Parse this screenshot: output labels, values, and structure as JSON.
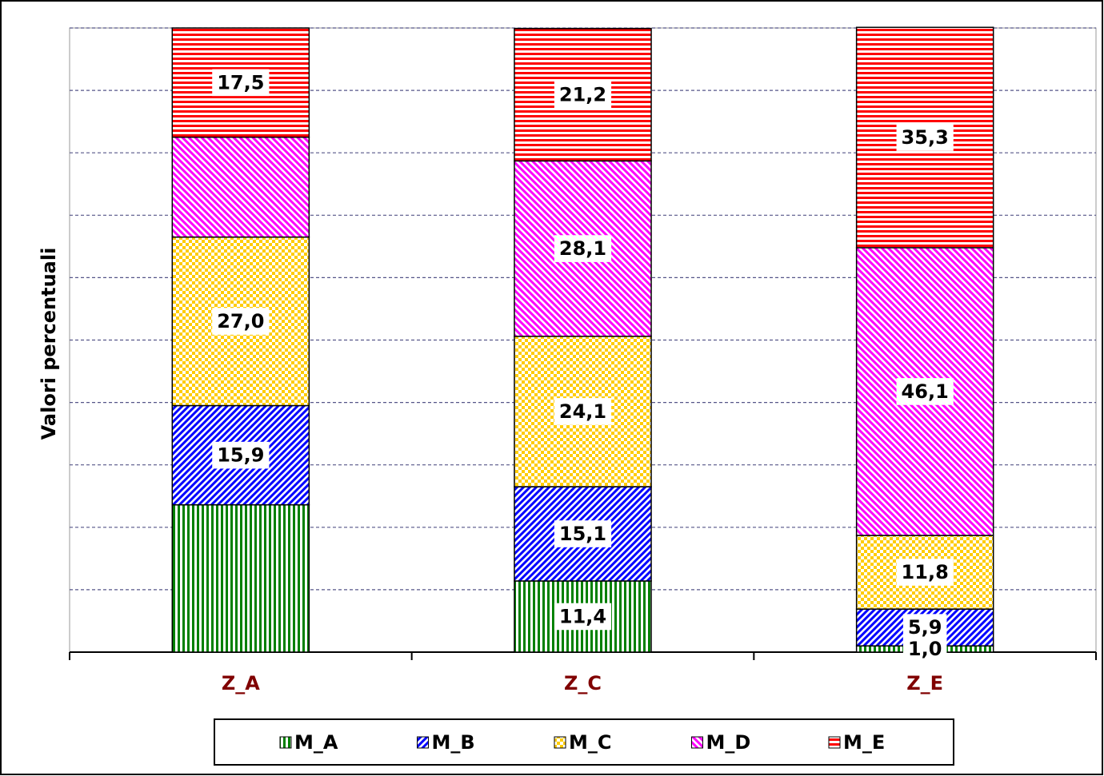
{
  "chart_data": {
    "type": "stacked_bar",
    "y_label": "Valori percentuali",
    "categories": [
      "Z_A",
      "Z_C",
      "Z_E"
    ],
    "series": [
      {
        "name": "M_A",
        "color": "#008000",
        "values": [
          23.6,
          11.4,
          1.0
        ],
        "value_labels": [
          null,
          "11,4",
          "1,0"
        ]
      },
      {
        "name": "M_B",
        "color": "#0000ff",
        "values": [
          15.9,
          15.1,
          5.9
        ],
        "value_labels": [
          "15,9",
          "15,1",
          "5,9"
        ]
      },
      {
        "name": "M_C",
        "color": "#ffcc00",
        "values": [
          27.0,
          24.1,
          11.8
        ],
        "value_labels": [
          "27,0",
          "24,1",
          "11,8"
        ]
      },
      {
        "name": "M_D",
        "color": "#ff00ff",
        "values": [
          16.0,
          28.1,
          46.1
        ],
        "value_labels": [
          null,
          "28,1",
          "46,1"
        ]
      },
      {
        "name": "M_E",
        "color": "#ff0000",
        "values": [
          17.5,
          21.2,
          35.3
        ],
        "value_labels": [
          "17,5",
          "21,2",
          "35,3"
        ]
      }
    ],
    "ylim": [
      0,
      100
    ],
    "yticks": [
      0,
      10,
      20,
      30,
      40,
      50,
      60,
      70,
      80,
      90,
      100
    ],
    "grid": true,
    "legend": "bottom"
  }
}
